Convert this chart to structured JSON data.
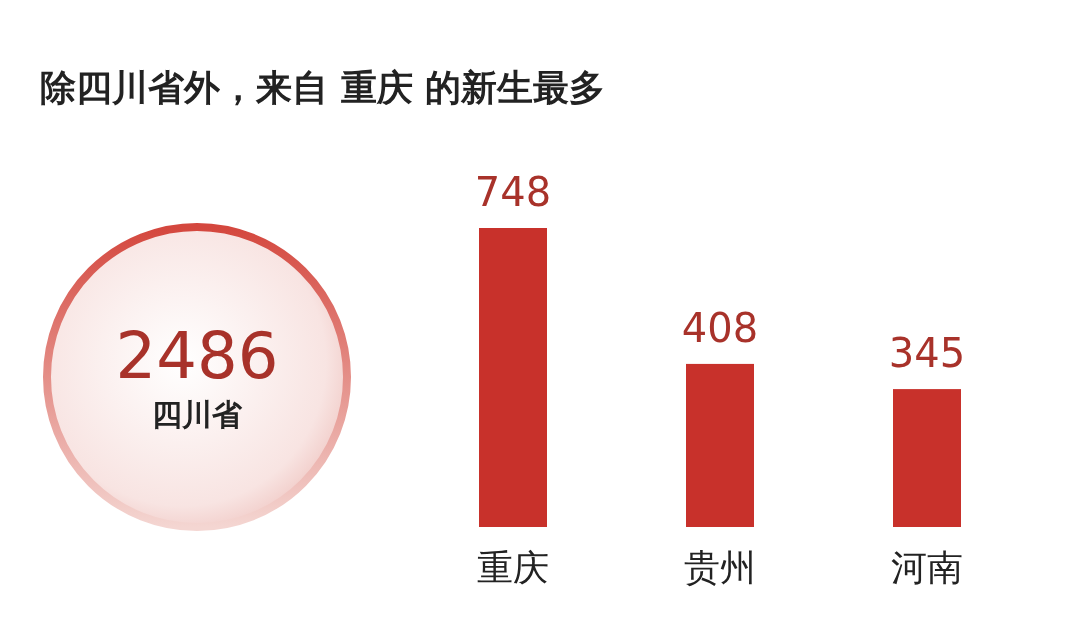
{
  "chart_data": [
    {
      "type": "other",
      "annotations": [
        "2486",
        "四川省"
      ]
    },
    {
      "type": "bar",
      "title": "除四川省外，来自 重庆 的新生最多",
      "categories": [
        "重庆",
        "贵州",
        "河南"
      ],
      "values": [
        748,
        408,
        345
      ],
      "color": "#c8312b",
      "data_labels": true
    }
  ]
}
